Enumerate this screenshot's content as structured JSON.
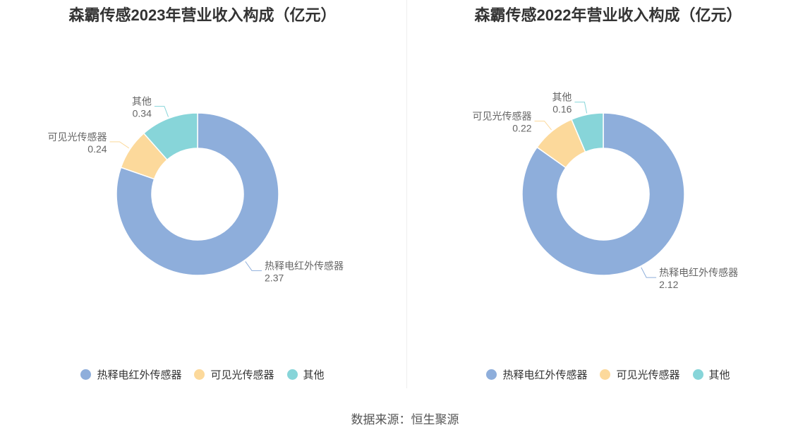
{
  "charts": [
    {
      "title": "森霸传感2023年营业收入构成（亿元）",
      "chart_data": {
        "type": "pie",
        "donut": true,
        "categories": [
          "热释电红外传感器",
          "可见光传感器",
          "其他"
        ],
        "values": [
          2.37,
          0.24,
          0.34
        ],
        "value_labels": [
          "2.37",
          "0.24",
          "0.34"
        ],
        "colors": [
          "#8eaedb",
          "#fcd99b",
          "#87d5d9"
        ],
        "legend_position": "bottom"
      }
    },
    {
      "title": "森霸传感2022年营业收入构成（亿元）",
      "chart_data": {
        "type": "pie",
        "donut": true,
        "categories": [
          "热释电红外传感器",
          "可见光传感器",
          "其他"
        ],
        "values": [
          2.12,
          0.22,
          0.16
        ],
        "value_labels": [
          "2.12",
          "0.22",
          "0.16"
        ],
        "colors": [
          "#8eaedb",
          "#fcd99b",
          "#87d5d9"
        ],
        "legend_position": "bottom"
      }
    }
  ],
  "source": "数据来源：恒生聚源"
}
